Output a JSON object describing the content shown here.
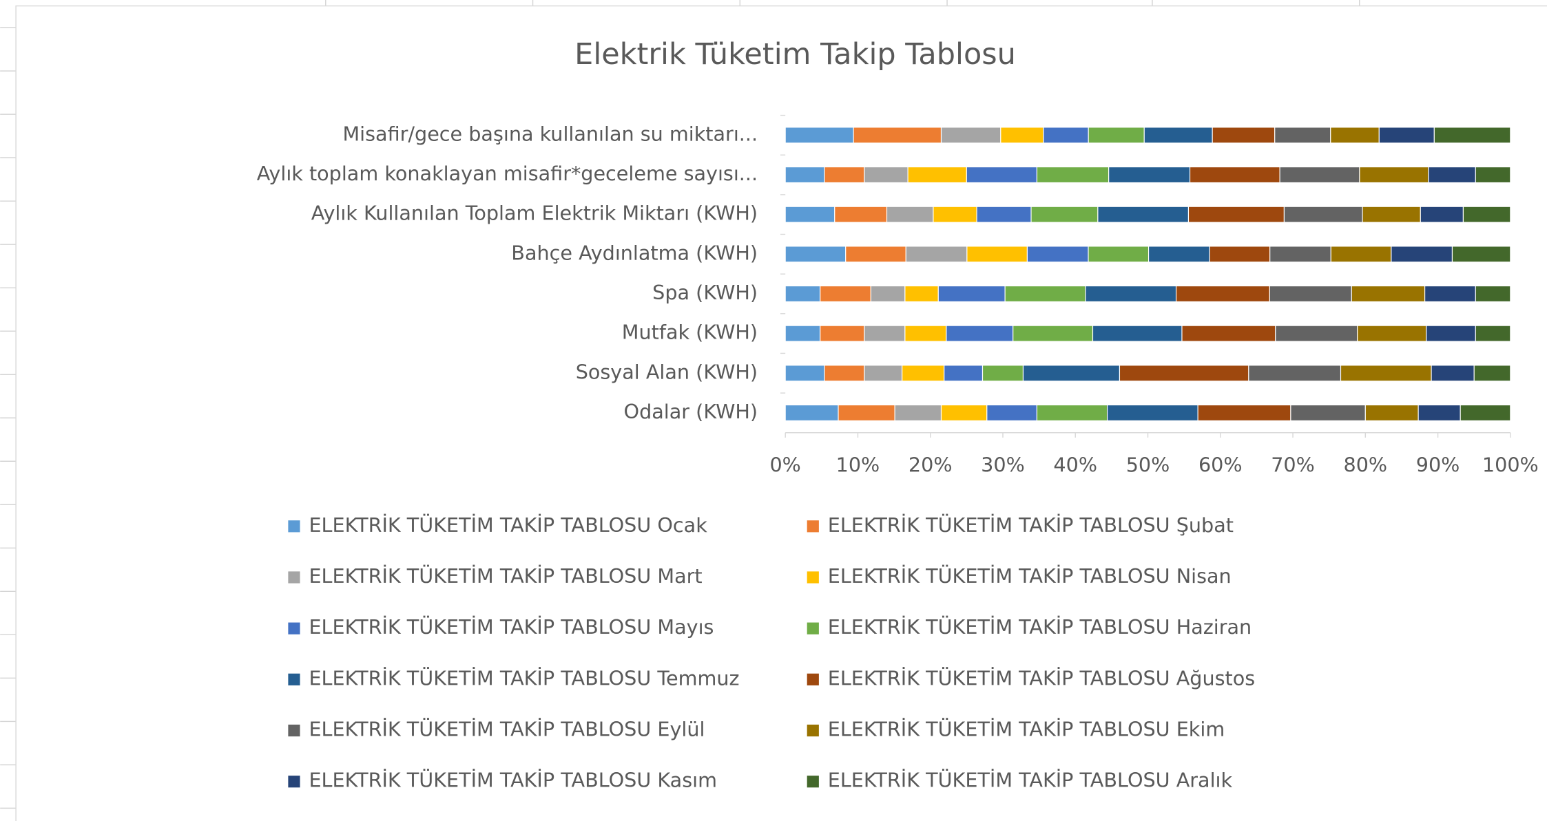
{
  "chart_data": {
    "type": "bar",
    "orientation": "horizontal",
    "stacking": "percent",
    "title": "Elektrik Tüketim Takip Tablosu",
    "categories": [
      "Misafir/gece başına kullanılan su miktarı...",
      "Aylık toplam konaklayan misafir*geceleme sayısı...",
      "Aylık Kullanılan Toplam Elektrik Miktarı (KWH)",
      "Bahçe Aydınlatma (KWH)",
      "Spa (KWH)",
      "Mutfak (KWH)",
      "Sosyal Alan (KWH)",
      "Odalar (KWH)"
    ],
    "series": [
      {
        "name": "ELEKTRİK TÜKETİM TAKİP TABLOSU Ocak",
        "color": "#5b9bd5",
        "values": [
          9.4,
          5.4,
          6.8,
          8.3,
          4.8,
          4.8,
          5.4,
          7.3
        ]
      },
      {
        "name": "ELEKTRİK TÜKETİM TAKİP TABLOSU Şubat",
        "color": "#ed7d31",
        "values": [
          12.1,
          5.5,
          7.2,
          8.3,
          7.0,
          6.1,
          5.5,
          7.8
        ]
      },
      {
        "name": "ELEKTRİK TÜKETİM TAKİP TABLOSU Mart",
        "color": "#a5a5a5",
        "values": [
          8.2,
          6.0,
          6.4,
          8.4,
          4.7,
          5.6,
          5.2,
          6.4
        ]
      },
      {
        "name": "ELEKTRİK TÜKETİM TAKİP TABLOSU Nisan",
        "color": "#ffc000",
        "values": [
          5.9,
          8.1,
          6.0,
          8.3,
          4.6,
          5.7,
          5.8,
          6.3
        ]
      },
      {
        "name": "ELEKTRİK TÜKETİM TAKİP TABLOSU Mayıs",
        "color": "#4472c4",
        "values": [
          6.2,
          9.7,
          7.5,
          8.4,
          9.2,
          9.2,
          5.3,
          6.9
        ]
      },
      {
        "name": "ELEKTRİK TÜKETİM TAKİP TABLOSU Haziran",
        "color": "#70ad47",
        "values": [
          7.7,
          9.9,
          9.2,
          8.3,
          11.1,
          11.0,
          5.6,
          9.7
        ]
      },
      {
        "name": "ELEKTRİK TÜKETİM TAKİP TABLOSU Temmuz",
        "color": "#255e91",
        "values": [
          9.4,
          11.2,
          12.5,
          8.4,
          12.5,
          12.3,
          13.3,
          12.5
        ]
      },
      {
        "name": "ELEKTRİK TÜKETİM TAKİP TABLOSU Ağustos",
        "color": "#9e480e",
        "values": [
          8.6,
          12.4,
          13.2,
          8.3,
          12.9,
          12.9,
          17.8,
          12.8
        ]
      },
      {
        "name": "ELEKTRİK TÜKETİM TAKİP TABLOSU Eylül",
        "color": "#636363",
        "values": [
          7.7,
          11.0,
          10.8,
          8.4,
          11.3,
          11.3,
          12.7,
          10.3
        ]
      },
      {
        "name": "ELEKTRİK TÜKETİM TAKİP TABLOSU Ekim",
        "color": "#997300",
        "values": [
          6.7,
          9.5,
          8.0,
          8.3,
          10.1,
          9.5,
          12.5,
          7.3
        ]
      },
      {
        "name": "ELEKTRİK TÜKETİM TAKİP TABLOSU Kasım",
        "color": "#264478",
        "values": [
          7.6,
          6.5,
          5.9,
          8.4,
          7.0,
          6.8,
          5.9,
          5.8
        ]
      },
      {
        "name": "ELEKTRİK TÜKETİM TAKİP TABLOSU Aralık",
        "color": "#43682b",
        "values": [
          10.5,
          4.8,
          6.5,
          8.0,
          4.8,
          4.8,
          5.0,
          6.9
        ]
      }
    ],
    "xlim": [
      0,
      100
    ],
    "xticks": [
      {
        "value": 0,
        "label": "0%"
      },
      {
        "value": 10,
        "label": "10%"
      },
      {
        "value": 20,
        "label": "20%"
      },
      {
        "value": 30,
        "label": "30%"
      },
      {
        "value": 40,
        "label": "40%"
      },
      {
        "value": 50,
        "label": "50%"
      },
      {
        "value": 60,
        "label": "60%"
      },
      {
        "value": 70,
        "label": "70%"
      },
      {
        "value": 80,
        "label": "80%"
      },
      {
        "value": 90,
        "label": "90%"
      },
      {
        "value": 100,
        "label": "100%"
      }
    ],
    "legend": "bottom"
  }
}
